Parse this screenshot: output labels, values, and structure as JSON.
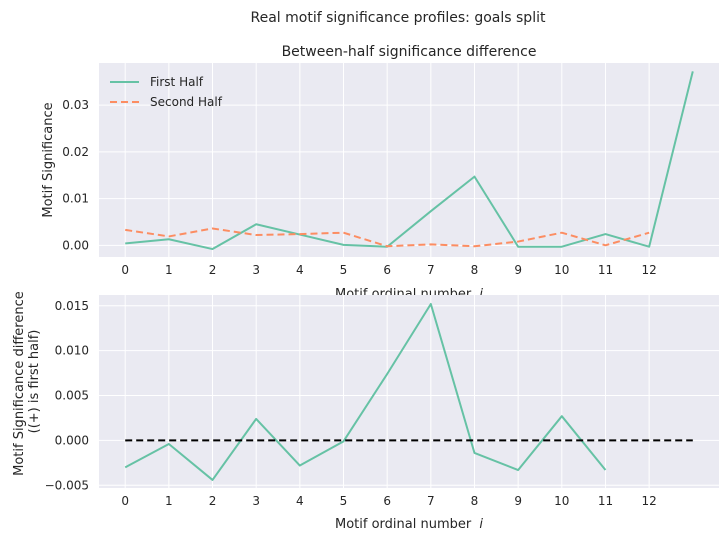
{
  "figure": {
    "suptitle": "Real motif significance profiles: goals split"
  },
  "colors": {
    "panel_bg": "#EAEAF2",
    "grid": "#FFFFFF",
    "first_half": "#66C2A5",
    "second_half": "#FC8D62",
    "zero_line": "#000000"
  },
  "chart_data": [
    {
      "type": "line",
      "title": "Between-half significance difference",
      "xlabel": "Motif ordinal number",
      "xlabel_var": "i",
      "ylabel": "Motif Significance",
      "xlim": [
        -0.6,
        13.6
      ],
      "ylim": [
        -0.0025,
        0.039
      ],
      "xticks": [
        0,
        1,
        2,
        3,
        4,
        5,
        6,
        7,
        8,
        9,
        10,
        11,
        12
      ],
      "xtick_labels": [
        "0",
        "1",
        "2",
        "3",
        "4",
        "5",
        "6",
        "7",
        "8",
        "9",
        "10",
        "11",
        "12"
      ],
      "yticks": [
        0.0,
        0.01,
        0.02,
        0.03
      ],
      "ytick_labels": [
        "0.00",
        "0.01",
        "0.02",
        "0.03"
      ],
      "grid": true,
      "legend_position": "upper-left",
      "series": [
        {
          "name": "First Half",
          "style": "solid",
          "x": [
            0,
            1,
            2,
            3,
            4,
            5,
            6,
            7,
            8,
            9,
            10,
            11,
            12,
            13
          ],
          "values": [
            0.0004,
            0.0013,
            -0.0008,
            0.0045,
            0.0023,
            0.0001,
            -0.0003,
            0.0073,
            0.0147,
            -0.0003,
            -0.0003,
            0.0024,
            -0.0003,
            0.0372
          ]
        },
        {
          "name": "Second Half",
          "style": "dashed",
          "x": [
            0,
            1,
            2,
            3,
            4,
            5,
            6,
            7,
            8,
            9,
            10,
            11,
            12
          ],
          "values": [
            0.0033,
            0.0019,
            0.0036,
            0.0022,
            0.0024,
            0.0027,
            -0.0002,
            0.0002,
            -0.0002,
            0.0008,
            0.0027,
            0.0,
            0.0027
          ]
        }
      ]
    },
    {
      "type": "line",
      "title": "",
      "xlabel": "Motif ordinal number",
      "xlabel_var": "i",
      "ylabel": "Motif Significance difference",
      "ylabel_line2": "((+) is first half)",
      "xlim": [
        -0.6,
        13.6
      ],
      "ylim": [
        -0.0053,
        0.0162
      ],
      "xticks": [
        0,
        1,
        2,
        3,
        4,
        5,
        6,
        7,
        8,
        9,
        10,
        11,
        12
      ],
      "xtick_labels": [
        "0",
        "1",
        "2",
        "3",
        "4",
        "5",
        "6",
        "7",
        "8",
        "9",
        "10",
        "11",
        "12"
      ],
      "yticks": [
        -0.005,
        0.0,
        0.005,
        0.01,
        0.015
      ],
      "ytick_labels": [
        "−0.005",
        "0.000",
        "0.005",
        "0.010",
        "0.015"
      ],
      "grid": true,
      "series": [
        {
          "style": "solid",
          "x": [
            0,
            1,
            2,
            3,
            4,
            5,
            6,
            7,
            8,
            9,
            10,
            11
          ],
          "values": [
            -0.003,
            -0.0004,
            -0.0044,
            0.0024,
            -0.0028,
            -0.0001,
            0.0074,
            0.0152,
            -0.0014,
            -0.0033,
            0.0027,
            -0.0033
          ]
        },
        {
          "style": "dashed-black",
          "x": [
            0,
            13
          ],
          "values": [
            0.0,
            0.0
          ]
        }
      ]
    }
  ]
}
